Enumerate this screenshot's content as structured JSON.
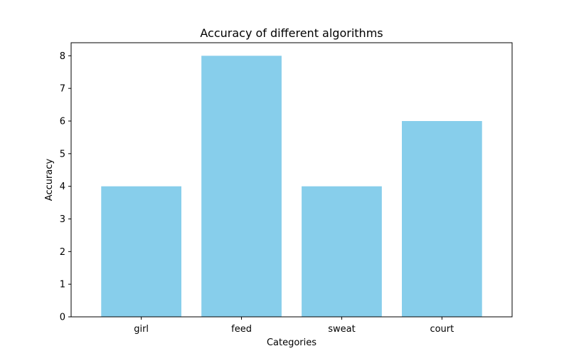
{
  "chart_data": {
    "type": "bar",
    "title": "Accuracy of different algorithms",
    "xlabel": "Categories",
    "ylabel": "Accuracy",
    "categories": [
      "girl",
      "feed",
      "sweat",
      "court"
    ],
    "values": [
      4,
      8,
      4,
      6
    ],
    "ylim": [
      0,
      8.4
    ],
    "yticks": [
      0,
      1,
      2,
      3,
      4,
      5,
      6,
      7,
      8
    ],
    "bar_color": "#87CEEB",
    "grid": false,
    "legend": "none"
  }
}
